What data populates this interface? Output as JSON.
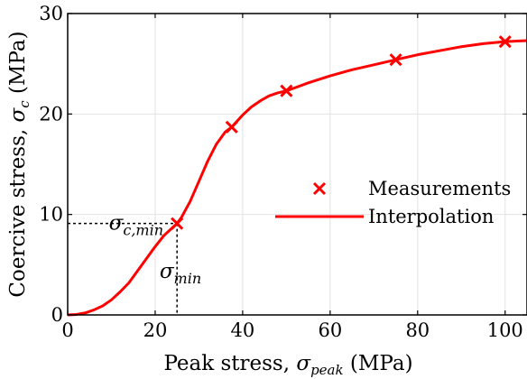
{
  "chart_data": {
    "type": "line",
    "xlabel": "Peak stress, σpeak (MPa)",
    "xlabel_parts": {
      "pre": "Peak stress, ",
      "symbol": "σ",
      "sub": "peak",
      "post": " (MPa)"
    },
    "ylabel": "Coercive stress, σc (MPa)",
    "ylabel_parts": {
      "pre": "Coercive stress, ",
      "symbol": "σ",
      "sub": "c",
      "post": " (MPa)"
    },
    "xlim": [
      0,
      105
    ],
    "ylim": [
      0,
      30
    ],
    "x_ticks": [
      0,
      20,
      40,
      60,
      80,
      100
    ],
    "y_ticks": [
      0,
      10,
      20,
      30
    ],
    "x_tick_labels": [
      "0",
      "20",
      "40",
      "60",
      "80",
      "100"
    ],
    "y_tick_labels": [
      "0",
      "10",
      "20",
      "30"
    ],
    "grid": true,
    "legend_position": "right",
    "series": [
      {
        "name": "Measurements",
        "kind": "marker-x",
        "color": "#ff0000",
        "x": [
          25,
          37.5,
          50,
          75,
          100
        ],
        "y": [
          9.1,
          18.7,
          22.3,
          25.4,
          27.2
        ]
      },
      {
        "name": "Interpolation",
        "kind": "line",
        "color": "#ff0000",
        "x": [
          0,
          2,
          4,
          6,
          8,
          10,
          12,
          14,
          16,
          18,
          20,
          22,
          24,
          25,
          26,
          28,
          30,
          32,
          34,
          36,
          37.5,
          40,
          42,
          44,
          46,
          48,
          50,
          55,
          60,
          65,
          70,
          75,
          80,
          85,
          90,
          95,
          100,
          105
        ],
        "y": [
          0,
          0.05,
          0.2,
          0.5,
          0.9,
          1.5,
          2.3,
          3.2,
          4.4,
          5.6,
          6.8,
          7.9,
          8.7,
          9.1,
          9.7,
          11.3,
          13.3,
          15.3,
          17.0,
          18.2,
          18.7,
          19.9,
          20.7,
          21.3,
          21.8,
          22.1,
          22.3,
          23.1,
          23.8,
          24.4,
          24.9,
          25.4,
          25.9,
          26.3,
          26.7,
          27.0,
          27.2,
          27.3
        ]
      }
    ],
    "annotations": {
      "sigma_min": {
        "symbol": "σ",
        "sub": "min",
        "x": 25,
        "y": 9.1
      },
      "sigma_c_min": {
        "symbol": "σ",
        "sub": "c,min",
        "x": 25,
        "y": 9.1
      }
    }
  }
}
